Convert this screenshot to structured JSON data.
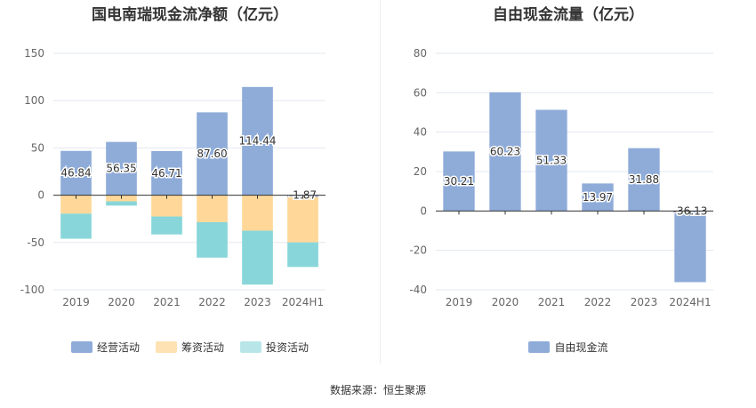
{
  "source_text": "数据来源：恒生聚源",
  "chart_data": [
    {
      "type": "bar",
      "stacked": true,
      "title": "国电南瑞现金流净额（亿元）",
      "categories": [
        "2019",
        "2020",
        "2021",
        "2022",
        "2023",
        "2024H1"
      ],
      "ylim": [
        -100,
        150
      ],
      "yticks": [
        150,
        100,
        50,
        0,
        -50,
        -100
      ],
      "grid": true,
      "legend_position": "bottom",
      "series": [
        {
          "name": "经营活动",
          "color": "#8facd9",
          "values": [
            46.84,
            56.35,
            46.71,
            87.6,
            114.44,
            -1.87
          ],
          "labels": [
            "46.84",
            "56.35",
            "46.71",
            "87.60",
            "114.44",
            "-1.87"
          ]
        },
        {
          "name": "筹资活动",
          "color": "#ffd899",
          "values": [
            -19.5,
            -6.5,
            -22.5,
            -28.5,
            -37.5,
            -48
          ]
        },
        {
          "name": "投资活动",
          "color": "#88d6d9",
          "values": [
            -26.5,
            -4.5,
            -19,
            -37.5,
            -57,
            -26
          ]
        }
      ]
    },
    {
      "type": "bar",
      "title": "自由现金流量（亿元）",
      "categories": [
        "2019",
        "2020",
        "2021",
        "2022",
        "2023",
        "2024H1"
      ],
      "ylim": [
        -40,
        80
      ],
      "yticks": [
        80,
        60,
        40,
        20,
        0,
        -20,
        -40
      ],
      "grid": true,
      "legend_position": "bottom",
      "series": [
        {
          "name": "自由现金流",
          "color": "#8facd9",
          "values": [
            30.21,
            60.23,
            51.33,
            13.97,
            31.88,
            -36.13
          ],
          "labels": [
            "30.21",
            "60.23",
            "51.33",
            "13.97",
            "31.88",
            "-36.13"
          ]
        }
      ]
    }
  ]
}
